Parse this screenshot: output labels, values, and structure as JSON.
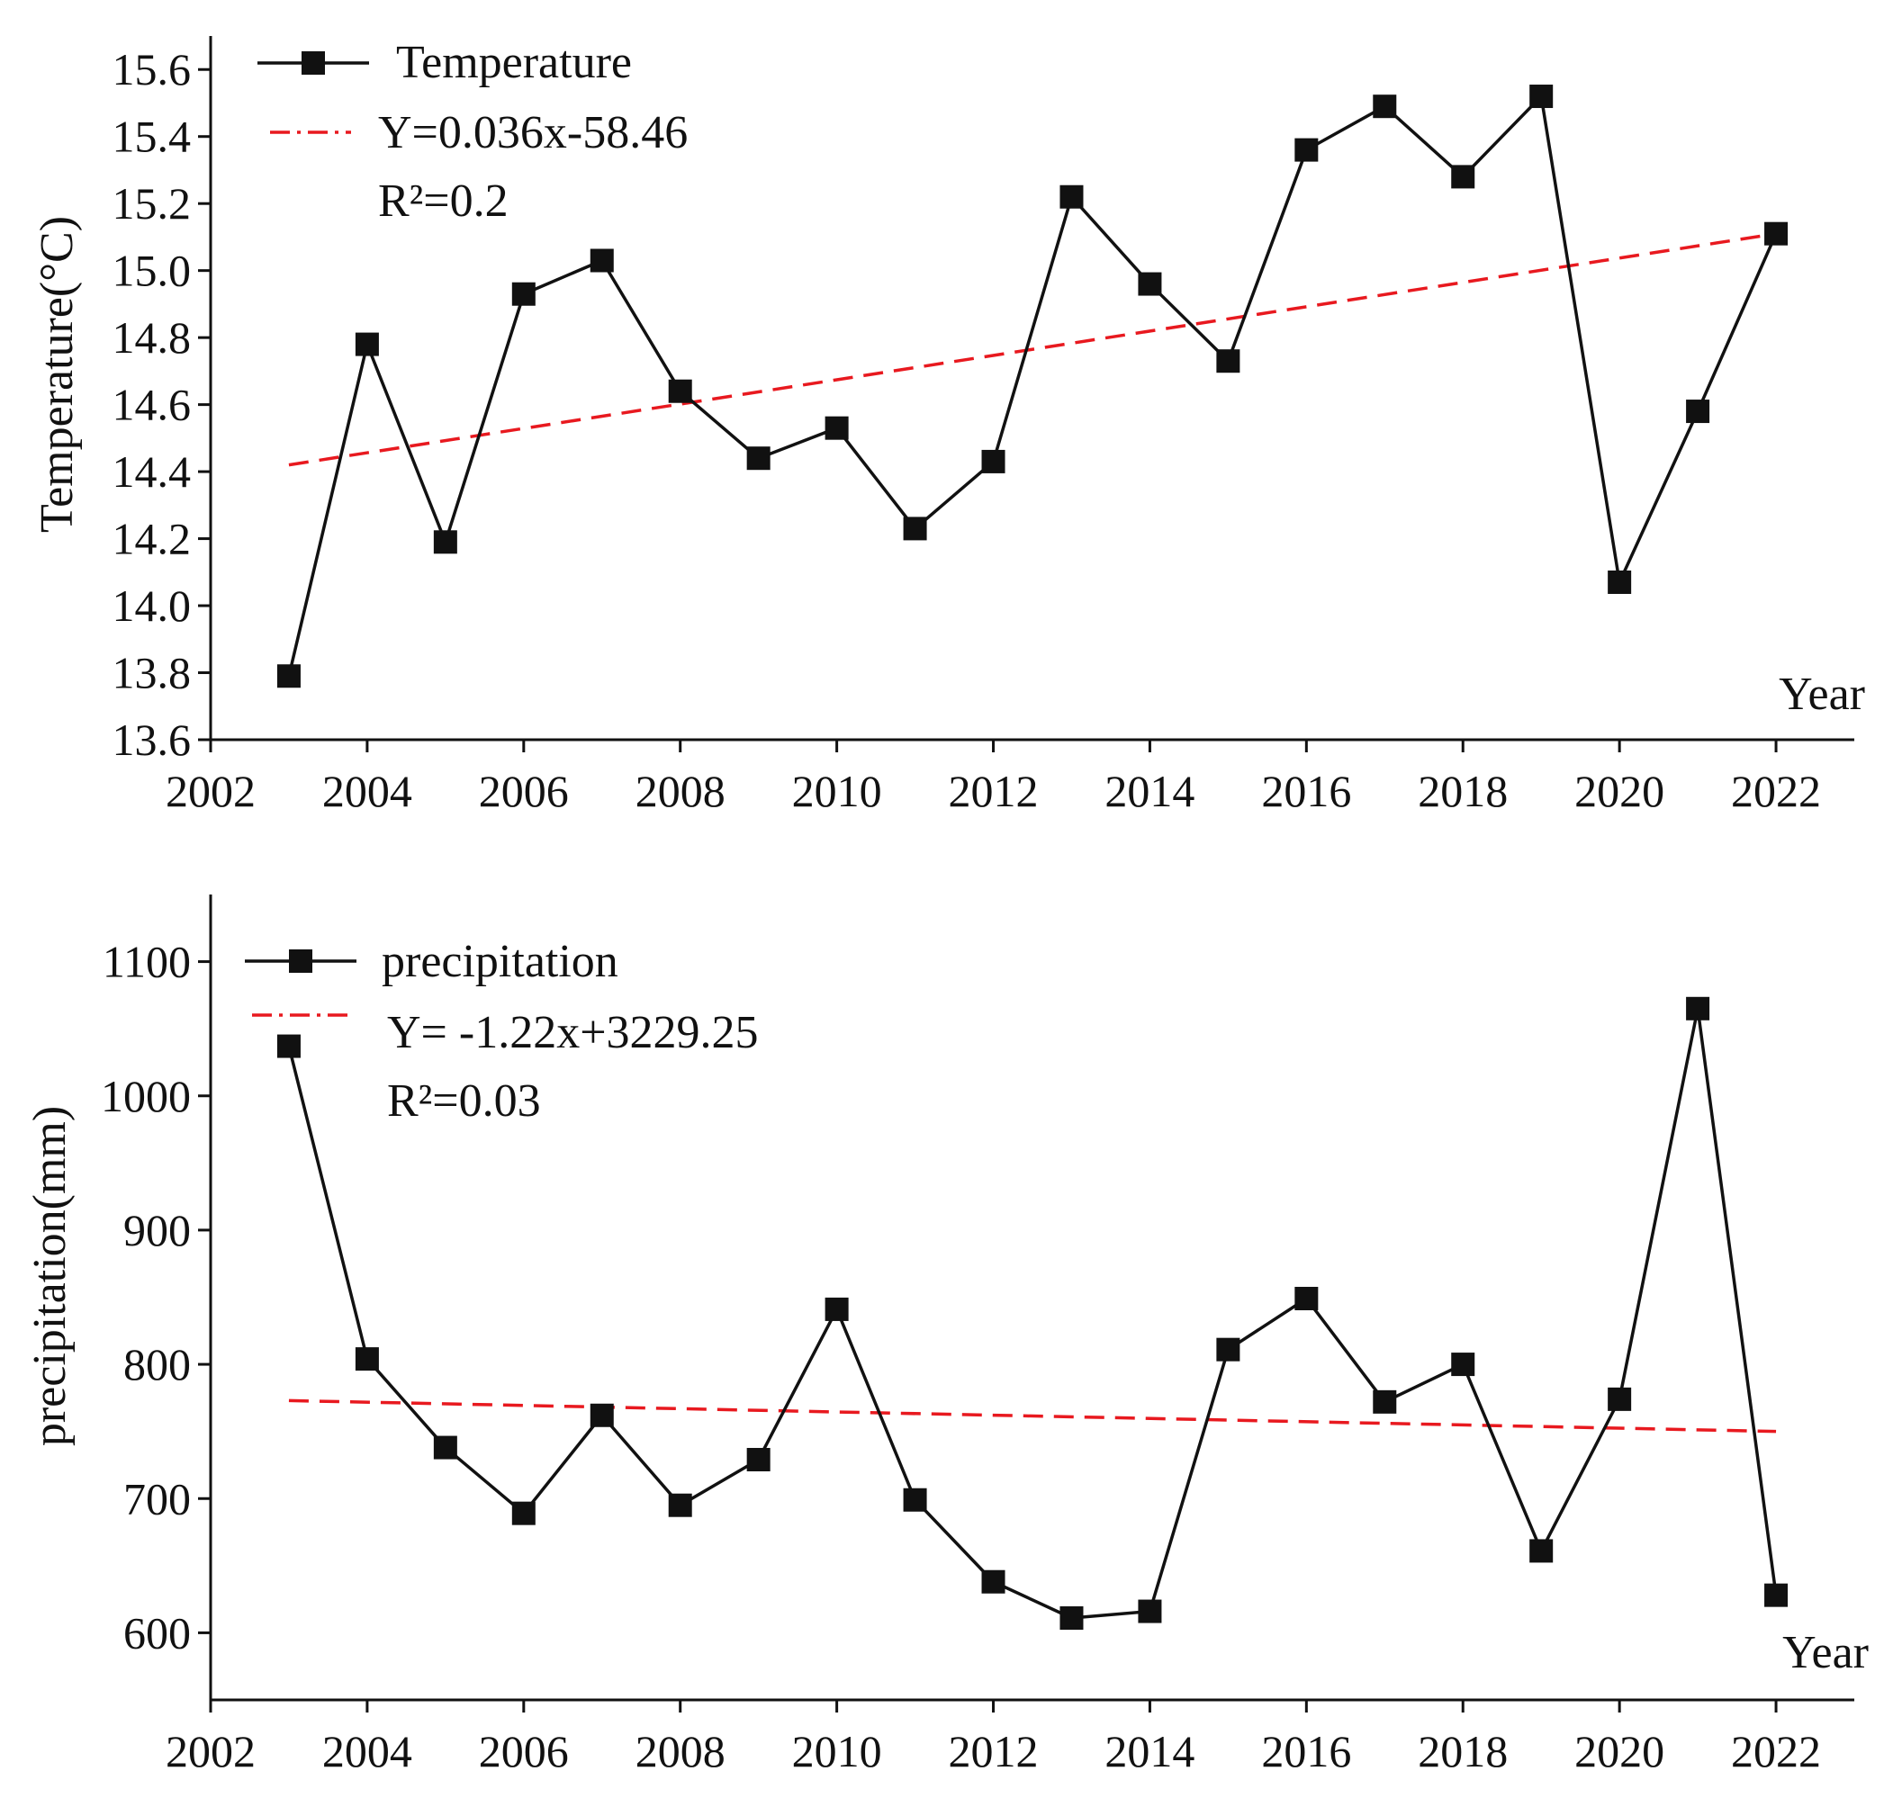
{
  "chart_data": [
    {
      "type": "line",
      "ylabel": "Temperature(°C)",
      "xlabel": "Year",
      "xlim": [
        2002,
        2023
      ],
      "ylim": [
        13.6,
        15.7
      ],
      "x_ticks": [
        2002,
        2004,
        2006,
        2008,
        2010,
        2012,
        2014,
        2016,
        2018,
        2020,
        2022
      ],
      "x_tick_labels": [
        "2002",
        "2004",
        "2006",
        "2008",
        "2010",
        "2012",
        "2014",
        "2016",
        "2018",
        "2020",
        "2022"
      ],
      "y_ticks": [
        13.6,
        13.8,
        14.0,
        14.2,
        14.4,
        14.6,
        14.8,
        15.0,
        15.2,
        15.4,
        15.6
      ],
      "y_tick_labels": [
        "13.6",
        "13.8",
        "14.0",
        "14.2",
        "14.4",
        "14.6",
        "14.8",
        "15.0",
        "15.2",
        "15.4",
        "15.6"
      ],
      "x": [
        2003,
        2004,
        2005,
        2006,
        2007,
        2008,
        2009,
        2010,
        2011,
        2012,
        2013,
        2014,
        2015,
        2016,
        2017,
        2018,
        2019,
        2020,
        2021,
        2022
      ],
      "series": [
        {
          "name": "Temperature",
          "values": [
            13.79,
            14.78,
            14.19,
            14.93,
            15.03,
            14.64,
            14.44,
            14.53,
            14.23,
            14.43,
            15.22,
            14.96,
            14.73,
            15.36,
            15.49,
            15.28,
            15.52,
            14.07,
            14.58,
            15.11
          ]
        }
      ],
      "trendline": {
        "equation": "Y=0.036x-58.46",
        "r_squared": "R²=0.2",
        "x_range": [
          2003,
          2022
        ],
        "y_range": [
          14.42,
          15.11
        ],
        "color": "#e8191f"
      },
      "legend_position": "top-left",
      "line_color": "#111111",
      "marker": "square"
    },
    {
      "type": "line",
      "ylabel": "precipitation(mm)",
      "xlabel": "Year",
      "xlim": [
        2002,
        2023
      ],
      "ylim": [
        550,
        1150
      ],
      "x_ticks": [
        2002,
        2004,
        2006,
        2008,
        2010,
        2012,
        2014,
        2016,
        2018,
        2020,
        2022
      ],
      "x_tick_labels": [
        "2002",
        "2004",
        "2006",
        "2008",
        "2010",
        "2012",
        "2014",
        "2016",
        "2018",
        "2020",
        "2022"
      ],
      "y_ticks": [
        600,
        700,
        800,
        900,
        1000,
        1100
      ],
      "y_tick_labels": [
        "600",
        "700",
        "800",
        "900",
        "1000",
        "1100"
      ],
      "x": [
        2003,
        2004,
        2005,
        2006,
        2007,
        2008,
        2009,
        2010,
        2011,
        2012,
        2013,
        2014,
        2015,
        2016,
        2017,
        2018,
        2019,
        2020,
        2021,
        2022
      ],
      "series": [
        {
          "name": "precipitation",
          "values": [
            1037,
            804,
            738,
            689,
            762,
            695,
            729,
            841,
            699,
            638,
            611,
            616,
            811,
            849,
            772,
            800,
            661,
            774,
            1065,
            628
          ]
        }
      ],
      "trendline": {
        "equation": "Y= -1.22x+3229.25",
        "r_squared": "R²=0.03",
        "x_range": [
          2003,
          2022
        ],
        "y_range": [
          773,
          750
        ],
        "color": "#e8191f"
      },
      "legend_position": "top-left",
      "line_color": "#111111",
      "marker": "square"
    }
  ]
}
